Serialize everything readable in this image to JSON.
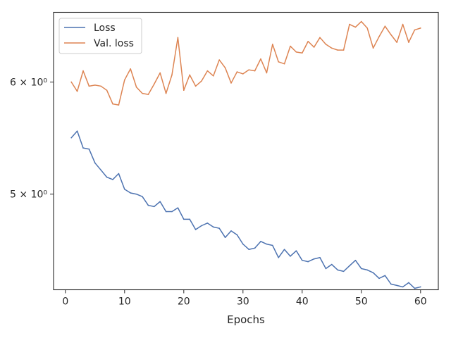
{
  "chart_data": {
    "type": "line",
    "title": "",
    "xlabel": "Epochs",
    "ylabel": "",
    "yscale": "log",
    "xlim": [
      -2,
      63
    ],
    "ylim": [
      4.28,
      6.72
    ],
    "grid": false,
    "legend": "top-left",
    "x_ticks": [
      0,
      10,
      20,
      30,
      40,
      50,
      60
    ],
    "x_tick_labels": [
      "0",
      "10",
      "20",
      "30",
      "40",
      "50",
      "60"
    ],
    "y_ticks": [
      5,
      6
    ],
    "y_tick_labels": [
      "5 × 10⁰",
      "6 × 10⁰"
    ],
    "x": [
      1,
      2,
      3,
      4,
      5,
      6,
      7,
      8,
      9,
      10,
      11,
      12,
      13,
      14,
      15,
      16,
      17,
      18,
      19,
      20,
      21,
      22,
      23,
      24,
      25,
      26,
      27,
      28,
      29,
      30,
      31,
      32,
      33,
      34,
      35,
      36,
      37,
      38,
      39,
      40,
      41,
      42,
      43,
      44,
      45,
      46,
      47,
      48,
      49,
      50,
      51,
      52,
      53,
      54,
      55,
      56,
      57,
      58,
      59,
      60
    ],
    "series": [
      {
        "name": "Loss",
        "color": "#4c72b0",
        "values": [
          5.48,
          5.54,
          5.39,
          5.38,
          5.26,
          5.2,
          5.14,
          5.12,
          5.17,
          5.04,
          5.01,
          5.0,
          4.98,
          4.91,
          4.9,
          4.94,
          4.86,
          4.86,
          4.89,
          4.8,
          4.8,
          4.72,
          4.75,
          4.77,
          4.74,
          4.73,
          4.66,
          4.71,
          4.68,
          4.61,
          4.57,
          4.58,
          4.63,
          4.61,
          4.6,
          4.51,
          4.57,
          4.52,
          4.56,
          4.49,
          4.48,
          4.5,
          4.51,
          4.43,
          4.46,
          4.42,
          4.41,
          4.45,
          4.49,
          4.43,
          4.42,
          4.4,
          4.36,
          4.38,
          4.32,
          4.31,
          4.3,
          4.33,
          4.29,
          4.3
        ]
      },
      {
        "name": "Val. loss",
        "color": "#dd8452",
        "values": [
          6.0,
          5.91,
          6.11,
          5.96,
          5.97,
          5.96,
          5.92,
          5.79,
          5.78,
          6.02,
          6.13,
          5.95,
          5.89,
          5.88,
          5.98,
          6.09,
          5.89,
          6.07,
          6.45,
          5.92,
          6.07,
          5.96,
          6.01,
          6.11,
          6.06,
          6.22,
          6.14,
          5.99,
          6.1,
          6.08,
          6.12,
          6.11,
          6.23,
          6.09,
          6.38,
          6.2,
          6.18,
          6.36,
          6.3,
          6.29,
          6.41,
          6.35,
          6.45,
          6.38,
          6.34,
          6.32,
          6.32,
          6.59,
          6.56,
          6.62,
          6.55,
          6.34,
          6.46,
          6.57,
          6.48,
          6.4,
          6.59,
          6.4,
          6.53,
          6.55
        ]
      }
    ]
  }
}
